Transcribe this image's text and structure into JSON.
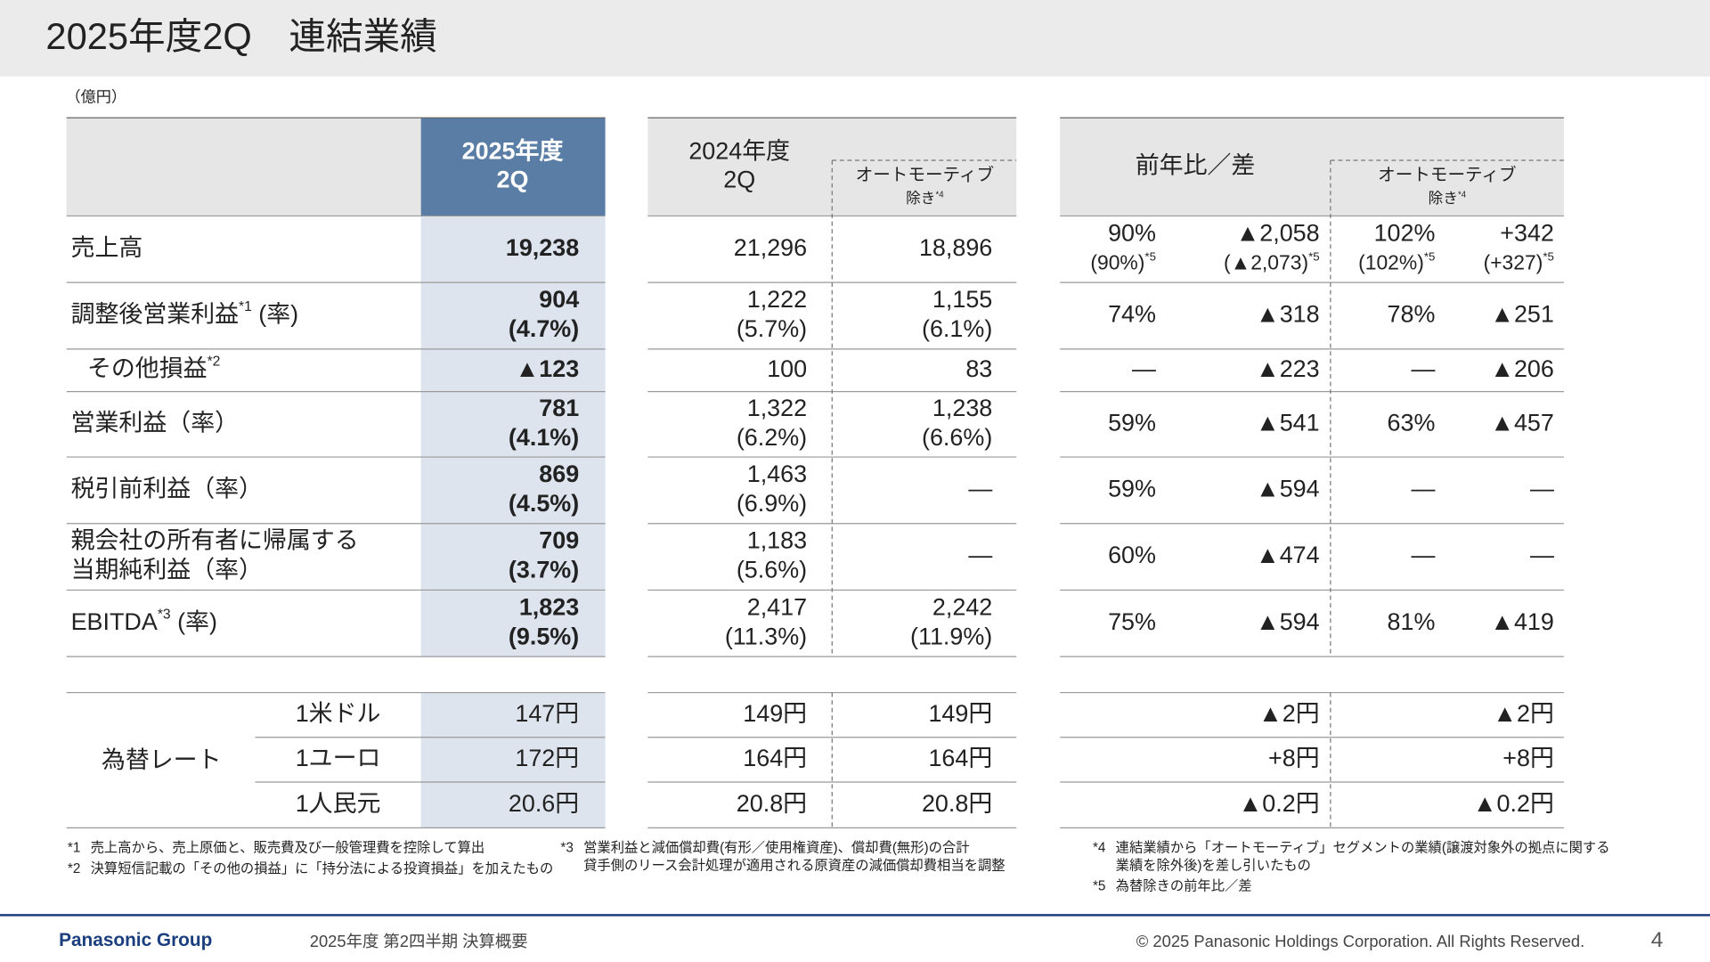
{
  "header": {
    "title": "2025年度2Q　連結業績",
    "unit": "（億円）"
  },
  "headers": {
    "current": [
      "2025年度",
      "2Q"
    ],
    "prior": [
      "2024年度",
      "2Q"
    ],
    "prior_excl": [
      "オートモーティブ",
      {
        "text": "除き",
        "note": "*4"
      }
    ],
    "yoy": [
      "前年比／差"
    ],
    "yoy_excl": [
      "オートモーティブ",
      {
        "text": "除き",
        "note": "*4"
      }
    ]
  },
  "rows": [
    {
      "label": [
        "売上高"
      ],
      "current": [
        "19,238"
      ],
      "prior": [
        "21,296"
      ],
      "prior_excl": [
        "18,896"
      ],
      "yoy_ratio": [
        "90%",
        {
          "text": "(90%)",
          "note": "*5"
        }
      ],
      "yoy_diff": [
        "▲2,058",
        {
          "text": "(▲2,073)",
          "note": "*5"
        }
      ],
      "excl_ratio": [
        "102%",
        {
          "text": "(102%)",
          "note": "*5"
        }
      ],
      "excl_diff": [
        "+342",
        {
          "text": "(+327)",
          "note": "*5"
        }
      ]
    },
    {
      "label": [
        {
          "text": "調整後営業利益",
          "note": "*1",
          "suffix": " (率)"
        }
      ],
      "current": [
        "904",
        "(4.7%)"
      ],
      "prior": [
        "1,222",
        "(5.7%)"
      ],
      "prior_excl": [
        "1,155",
        "(6.1%)"
      ],
      "yoy_ratio": [
        "74%"
      ],
      "yoy_diff": [
        "▲318"
      ],
      "excl_ratio": [
        "78%"
      ],
      "excl_diff": [
        "▲251"
      ]
    },
    {
      "label": [
        {
          "text": "その他損益",
          "note": "*2"
        }
      ],
      "current": [
        "▲123"
      ],
      "prior": [
        "100"
      ],
      "prior_excl": [
        "83"
      ],
      "yoy_ratio": [
        "—"
      ],
      "yoy_diff": [
        "▲223"
      ],
      "excl_ratio": [
        "—"
      ],
      "excl_diff": [
        "▲206"
      ]
    },
    {
      "label": [
        "営業利益（率）"
      ],
      "current": [
        "781",
        "(4.1%)"
      ],
      "prior": [
        "1,322",
        "(6.2%)"
      ],
      "prior_excl": [
        "1,238",
        "(6.6%)"
      ],
      "yoy_ratio": [
        "59%"
      ],
      "yoy_diff": [
        "▲541"
      ],
      "excl_ratio": [
        "63%"
      ],
      "excl_diff": [
        "▲457"
      ]
    },
    {
      "label": [
        "税引前利益（率）"
      ],
      "current": [
        "869",
        "(4.5%)"
      ],
      "prior": [
        "1,463",
        "(6.9%)"
      ],
      "prior_excl": [
        "—"
      ],
      "yoy_ratio": [
        "59%"
      ],
      "yoy_diff": [
        "▲594"
      ],
      "excl_ratio": [
        "—"
      ],
      "excl_diff": [
        "—"
      ]
    },
    {
      "label": [
        "親会社の所有者に帰属する",
        "当期純利益（率）"
      ],
      "current": [
        "709",
        "(3.7%)"
      ],
      "prior": [
        "1,183",
        "(5.6%)"
      ],
      "prior_excl": [
        "—"
      ],
      "yoy_ratio": [
        "60%"
      ],
      "yoy_diff": [
        "▲474"
      ],
      "excl_ratio": [
        "—"
      ],
      "excl_diff": [
        "—"
      ]
    },
    {
      "label": [
        {
          "text": "EBITDA",
          "note": "*3",
          "suffix": " (率)"
        }
      ],
      "current": [
        "1,823",
        "(9.5%)"
      ],
      "prior": [
        "2,417",
        "(11.3%)"
      ],
      "prior_excl": [
        "2,242",
        "(11.9%)"
      ],
      "yoy_ratio": [
        "75%"
      ],
      "yoy_diff": [
        "▲594"
      ],
      "excl_ratio": [
        "81%"
      ],
      "excl_diff": [
        "▲419"
      ]
    }
  ],
  "fx": {
    "label": "為替レート",
    "rows": [
      {
        "currency": "1米ドル",
        "current": "147円",
        "prior": "149円",
        "prior_excl": "149円",
        "yoy_diff": "▲2円",
        "excl_diff": "▲2円"
      },
      {
        "currency": "1ユーロ",
        "current": "172円",
        "prior": "164円",
        "prior_excl": "164円",
        "yoy_diff": "+8円",
        "excl_diff": "+8円"
      },
      {
        "currency": "1人民元",
        "current": "20.6円",
        "prior": "20.8円",
        "prior_excl": "20.8円",
        "yoy_diff": "▲0.2円",
        "excl_diff": "▲0.2円"
      }
    ]
  },
  "footnotes": [
    {
      "mark": "*1",
      "lines": [
        "売上高から、売上原価と、販売費及び一般管理費を控除して算出"
      ]
    },
    {
      "mark": "*2",
      "lines": [
        "決算短信記載の「その他の損益」に「持分法による投資損益」を加えたもの"
      ]
    },
    {
      "mark": "*3",
      "lines": [
        "営業利益と減価償却費(有形／使用権資産)、償却費(無形)の合計",
        "貸手側のリース会計処理が適用される原資産の減価償却費相当を調整"
      ]
    },
    {
      "mark": "*4",
      "lines": [
        "連結業績から「オートモーティブ」セグメントの業績(譲渡対象外の拠点に関する",
        "業績を除外後)を差し引いたもの"
      ]
    },
    {
      "mark": "*5",
      "lines": [
        "為替除きの前年比／差"
      ]
    }
  ],
  "footer": {
    "brand": "Panasonic Group",
    "document": "2025年度 第2四半期 決算概要",
    "copyright": "© 2025 Panasonic Holdings Corporation. All Rights Reserved.",
    "page": "4"
  }
}
